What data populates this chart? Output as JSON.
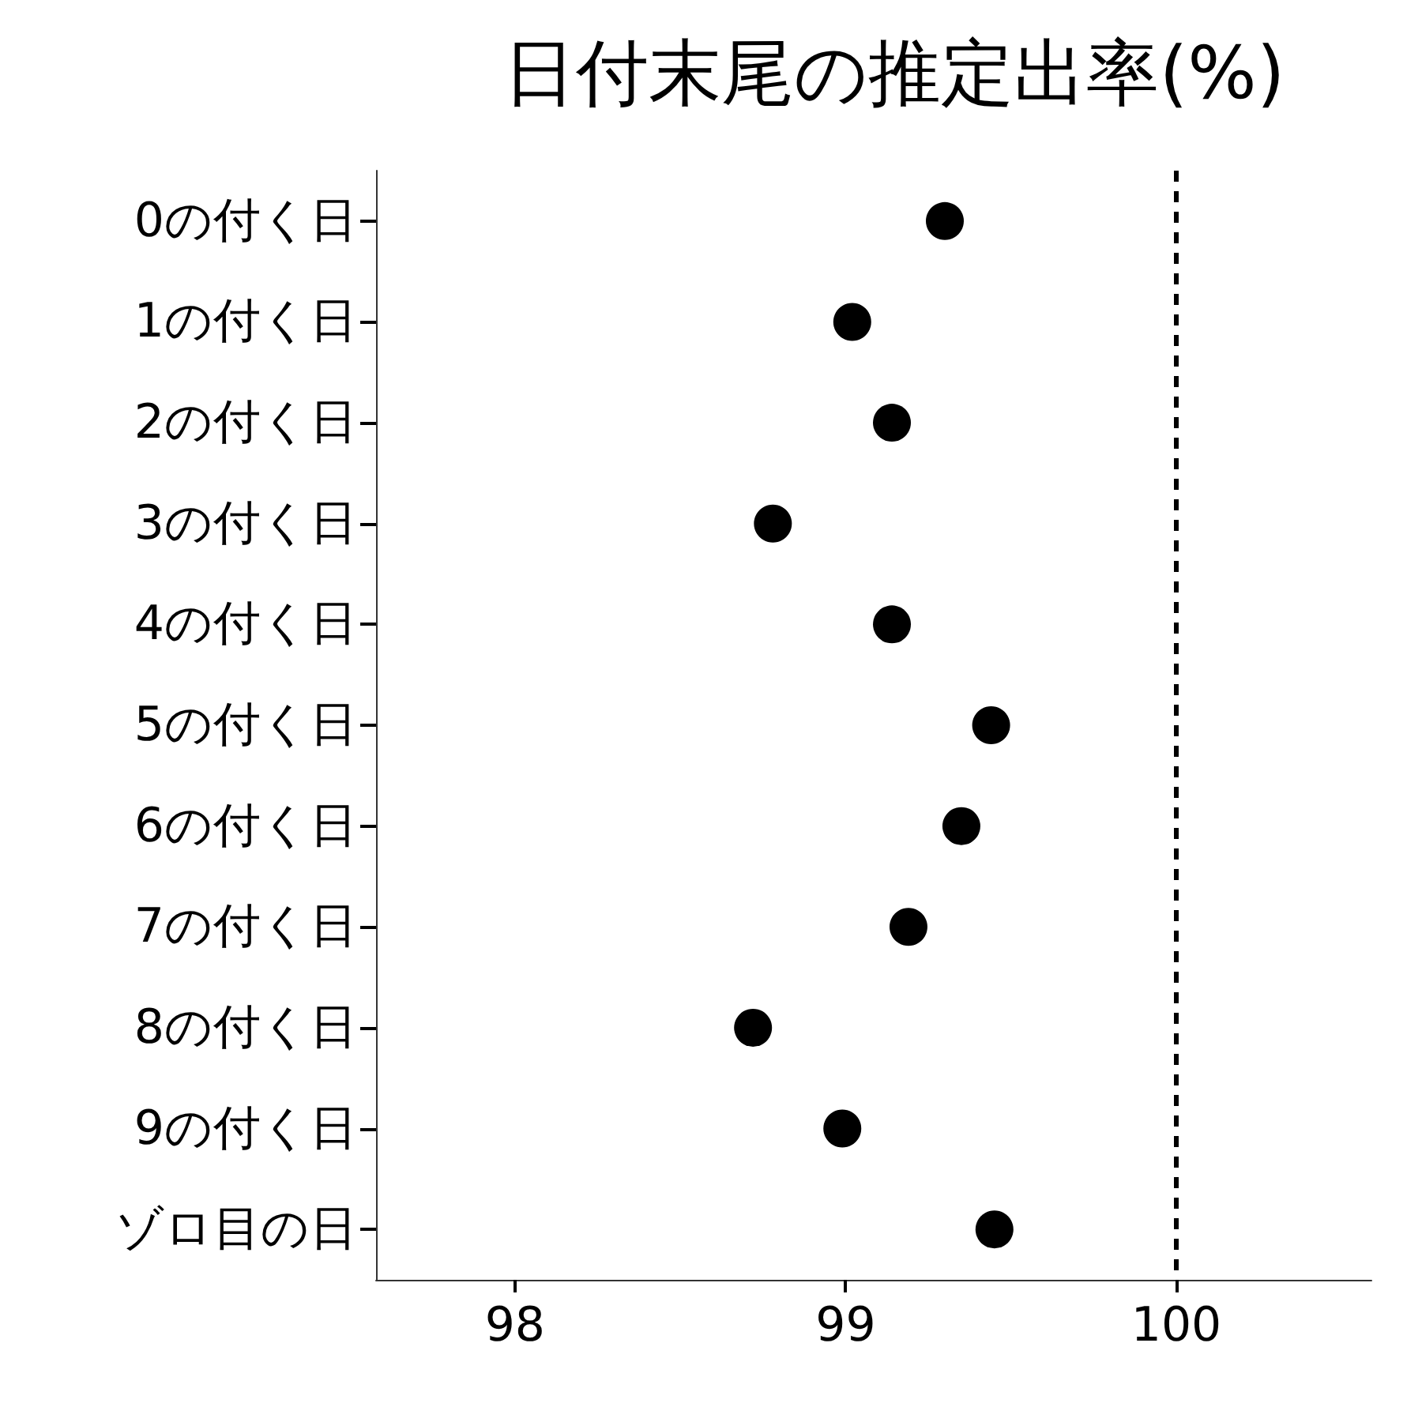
{
  "chart_data": {
    "type": "scatter",
    "title": "日付末尾の推定出率(%)",
    "orientation": "horizontal",
    "categories": [
      "0の付く日",
      "1の付く日",
      "2の付く日",
      "3の付く日",
      "4の付く日",
      "5の付く日",
      "6の付く日",
      "7の付く日",
      "8の付く日",
      "9の付く日",
      "ゾロ目の日"
    ],
    "series": [
      {
        "color": "#000000",
        "values": [
          99.3,
          99.02,
          99.14,
          98.78,
          99.14,
          99.44,
          99.35,
          99.19,
          98.72,
          98.99,
          99.45
        ]
      }
    ],
    "xlim": [
      97.58,
      100.59
    ],
    "xticks": [
      98,
      99,
      100
    ],
    "grid": false,
    "marker": "circle",
    "ref_lines": [
      {
        "axis": "x",
        "value": 100,
        "color": "#000000",
        "line_style": "dashed"
      }
    ]
  }
}
